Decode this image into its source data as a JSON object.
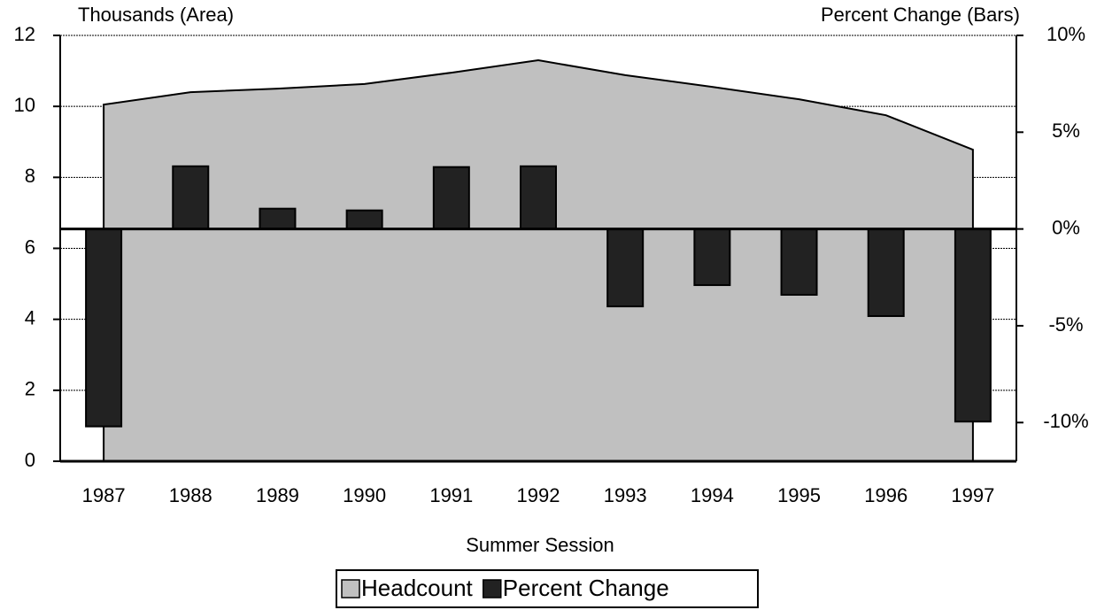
{
  "chart_data": {
    "type": "combo",
    "y_label": "Thousands (Area)",
    "y2_label": "Percent Change (Bars)",
    "x_label": "Summer Session",
    "categories": [
      "1987",
      "1988",
      "1989",
      "1990",
      "1991",
      "1992",
      "1993",
      "1994",
      "1995",
      "1996",
      "1997"
    ],
    "series": [
      {
        "name": "Headcount",
        "type": "area",
        "color": "#c0c0c0",
        "values": [
          10.05,
          10.4,
          10.5,
          10.63,
          10.95,
          11.3,
          10.88,
          10.55,
          10.2,
          9.75,
          8.78
        ]
      },
      {
        "name": "Percent Change",
        "type": "bar",
        "axis": "y2",
        "color": "#222222",
        "values": [
          -10.2,
          3.24,
          1.05,
          0.96,
          3.2,
          3.24,
          -4.0,
          -2.9,
          -3.4,
          -4.5,
          -9.95
        ]
      }
    ],
    "ylim": [
      0,
      12
    ],
    "yticks": [
      0,
      2,
      4,
      6,
      8,
      10,
      12
    ],
    "y2lim": [
      -12,
      10
    ],
    "y2ticks": [
      {
        "value": -10,
        "label": "-10%"
      },
      {
        "value": -5,
        "label": "-5%"
      },
      {
        "value": 0,
        "label": "0%"
      },
      {
        "value": 5,
        "label": "5%"
      },
      {
        "value": 10,
        "label": "10%"
      }
    ],
    "grid": true
  }
}
